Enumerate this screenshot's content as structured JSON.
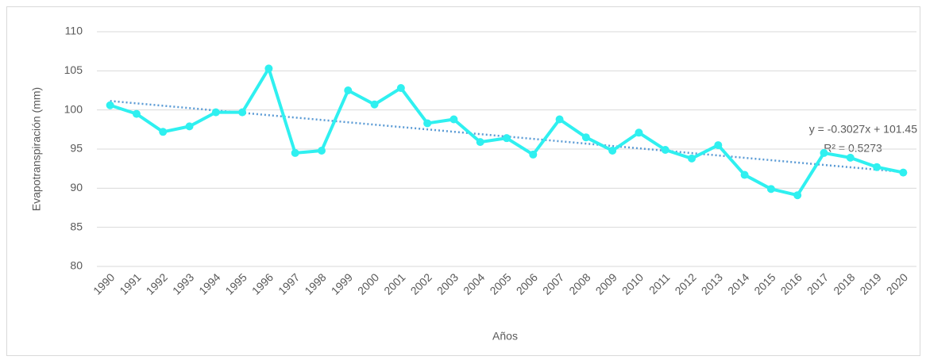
{
  "chart_data": {
    "type": "line",
    "x_label": "Años",
    "y_label": "Evapotranspiración (mm)",
    "categories": [
      "1990",
      "1991",
      "1992",
      "1993",
      "1994",
      "1995",
      "1996",
      "1997",
      "1998",
      "1999",
      "2000",
      "2001",
      "2002",
      "2003",
      "2004",
      "2005",
      "2006",
      "2007",
      "2008",
      "2009",
      "2010",
      "2011",
      "2012",
      "2013",
      "2014",
      "2015",
      "2016",
      "2017",
      "2018",
      "2019",
      "2020"
    ],
    "series": [
      {
        "name": "Evapotranspiración",
        "color": "#2ff0f0",
        "values": [
          100.6,
          99.5,
          97.2,
          97.9,
          99.7,
          99.7,
          105.3,
          94.5,
          94.8,
          102.5,
          100.7,
          102.8,
          98.3,
          98.8,
          95.9,
          96.4,
          94.3,
          98.8,
          96.5,
          94.8,
          97.1,
          94.9,
          93.8,
          95.5,
          91.7,
          89.9,
          89.1,
          94.5,
          93.9,
          92.7,
          92.0
        ]
      }
    ],
    "trendline": {
      "slope": -0.3027,
      "intercept": 101.45,
      "color": "#5b9bd5",
      "equation": "y = -0.3027x + 101.45",
      "r2": "R² = 0.5273"
    },
    "ylim": [
      80,
      110
    ],
    "yticks": [
      80,
      85,
      90,
      95,
      100,
      105,
      110
    ],
    "grid": true
  }
}
